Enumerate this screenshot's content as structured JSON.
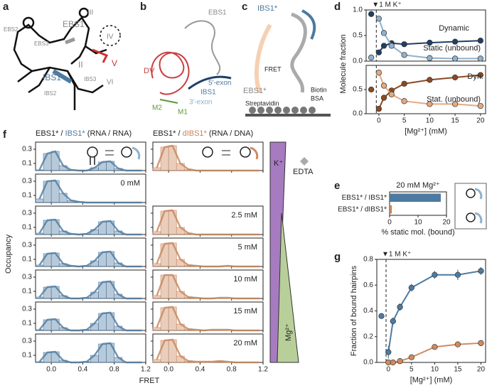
{
  "panel_labels": [
    "a",
    "b",
    "c",
    "d",
    "e",
    "f",
    "g"
  ],
  "panel_a": {
    "labels": [
      "EBS2",
      "EBS1",
      "III",
      "EBS3",
      "II",
      "IV",
      "V",
      "IBS1",
      "IBS2",
      "IBS3",
      "VI"
    ]
  },
  "panel_b": {
    "labels": [
      "EBS1",
      "DV",
      "5'-exon",
      "IBS1",
      "3'-exon",
      "M2",
      "M1"
    ]
  },
  "panel_c": {
    "labels": [
      "IBS1*",
      "FRET",
      "EBS1*",
      "Biotin",
      "BSA",
      "Streptavidin"
    ]
  },
  "panel_f_side": {
    "labels": [
      "K⁺",
      "EDTA",
      "Mg²⁺"
    ]
  },
  "chart_data": [
    {
      "type": "scatter",
      "ylabel": "Molecule fraction",
      "annotation": "▼1 M K⁺",
      "marker_x": -0.5,
      "x": [
        -1.5,
        0,
        1,
        2.5,
        5,
        10,
        15,
        20
      ],
      "xlim": [
        -2.5,
        21
      ],
      "ylim": [
        0,
        1
      ],
      "yticks": [
        {
          "value": 0,
          "label": "0.0"
        },
        {
          "value": 0.5,
          "label": "0.5"
        },
        {
          "value": 1,
          "label": "1.0"
        }
      ],
      "series": [
        {
          "name": "Dynamic",
          "color": "#1f3f66",
          "values": [
            0.92,
            0.17,
            0.3,
            0.35,
            0.33,
            0.36,
            0.38,
            0.4
          ]
        },
        {
          "name": "Static (unbound)",
          "color": "#8fb1cc",
          "values": [
            0.07,
            0.83,
            0.55,
            0.3,
            0.12,
            0.06,
            0.05,
            0.05
          ]
        }
      ]
    },
    {
      "type": "scatter",
      "xlabel": "[Mg²⁺] (mM)",
      "marker_x": -0.5,
      "x": [
        -1.5,
        0,
        1,
        2.5,
        5,
        10,
        15,
        20
      ],
      "xlim": [
        -2.5,
        21
      ],
      "ylim": [
        0,
        1
      ],
      "xticks": [
        0,
        5,
        10,
        15,
        20
      ],
      "yticks": [
        {
          "value": 0,
          "label": "0.0"
        },
        {
          "value": 0.5,
          "label": "0.5"
        }
      ],
      "series": [
        {
          "name": "Dyn.",
          "color": "#8b4a22",
          "values": [
            0.5,
            0.1,
            0.33,
            0.48,
            0.62,
            0.7,
            0.75,
            0.8
          ]
        },
        {
          "name": "Stat. (unbound)",
          "color": "#e3a982",
          "values": [
            null,
            0.85,
            0.58,
            0.4,
            0.26,
            0.2,
            0.2,
            0.16
          ]
        }
      ]
    },
    {
      "type": "hbar",
      "title": "20 mM Mg²⁺",
      "xlabel": "% static mol. (bound)",
      "categories": [
        "EBS1* / IBS1*",
        "EBS1* / dIBS1*"
      ],
      "values": [
        18,
        0.8
      ],
      "colors": [
        "#4d7aa0",
        "#c8845a"
      ],
      "xlim": [
        0,
        20
      ],
      "xticks": [
        0,
        10,
        20
      ]
    },
    {
      "type": "scatter",
      "ylabel": "Fraction of bound hairpins",
      "xlabel": "[Mg²⁺] (mM)",
      "annotation": "▼1 M K⁺",
      "marker_x": -0.5,
      "x": [
        -1.5,
        0,
        1,
        2.5,
        5,
        10,
        15,
        20
      ],
      "xlim": [
        -2.5,
        21
      ],
      "ylim": [
        0,
        0.8
      ],
      "xticks": [
        0,
        5,
        10,
        15,
        20
      ],
      "yticks": [
        {
          "value": 0,
          "label": "0.0"
        },
        {
          "value": 0.2,
          "label": "0.2"
        },
        {
          "value": 0.4,
          "label": "0.4"
        },
        {
          "value": 0.6,
          "label": "0.6"
        },
        {
          "value": 0.8,
          "label": "0.8"
        }
      ],
      "series": [
        {
          "color": "#4d7aa0",
          "values": [
            0.36,
            0.08,
            0.32,
            0.43,
            0.58,
            0.68,
            0.68,
            0.71
          ],
          "errors": [
            0.02,
            0.05,
            0.03,
            0.03,
            0.03,
            0.03,
            0.04,
            0.03
          ]
        },
        {
          "color": "#d08a5e",
          "values": [
            null,
            0.0,
            0.0,
            0.01,
            0.04,
            0.12,
            0.14,
            0.15
          ],
          "errors": [
            null,
            0.01,
            0.01,
            0.01,
            0.01,
            0.01,
            0.01,
            0.01
          ]
        }
      ]
    },
    {
      "type": "histogram",
      "ylabel": "Occupancy",
      "xlabel": "FRET",
      "headers": [
        [
          "EBS1* / ",
          "IBS1*",
          " (RNA / RNA)"
        ],
        [
          "EBS1* / ",
          "dIBS1*",
          " (RNA / DNA)"
        ]
      ],
      "colors": [
        "#4d7aa0",
        "#c8845a"
      ],
      "bins": [
        -0.2,
        -0.1,
        0,
        0.1,
        0.2,
        0.3,
        0.4,
        0.5,
        0.6,
        0.7,
        0.8,
        0.9,
        1.0,
        1.1,
        1.2
      ],
      "xlim": [
        -0.2,
        1.2
      ],
      "ylim": [
        0,
        0.4
      ],
      "yticks": [
        0.1,
        0.3
      ],
      "xticks": [
        {
          "value": 0,
          "label": "0.0"
        },
        {
          "value": 0.4,
          "label": "0.4"
        },
        {
          "value": 0.8,
          "label": "0.8"
        },
        {
          "value": 1.2,
          "label": "1.2"
        }
      ],
      "rows": [
        {
          "counts": [
            [
              0.01,
              0.24,
              0.27,
              0.07,
              0.01,
              0,
              0,
              0.04,
              0.12,
              0.13,
              0.03,
              0,
              0,
              0
            ],
            [
              0.04,
              0.33,
              0.35,
              0.1,
              0.02,
              0,
              0,
              0,
              0,
              0,
              0,
              0,
              0,
              0
            ]
          ]
        },
        {
          "label": "0 mM",
          "counts": [
            [
              0.05,
              0.3,
              0.31,
              0.13,
              0.03,
              0.01,
              0,
              0,
              0,
              0,
              0,
              0,
              0,
              0
            ],
            null
          ]
        },
        {
          "label": "2.5 mM",
          "counts": [
            [
              0.02,
              0.2,
              0.21,
              0.05,
              0.01,
              0,
              0.01,
              0.07,
              0.18,
              0.19,
              0.05,
              0,
              0,
              0
            ],
            [
              0.04,
              0.33,
              0.34,
              0.1,
              0.02,
              0,
              0,
              0,
              0,
              0,
              0,
              0,
              0,
              0
            ]
          ]
        },
        {
          "label": "5 mM",
          "counts": [
            [
              0.02,
              0.18,
              0.19,
              0.04,
              0.01,
              0,
              0.01,
              0.08,
              0.2,
              0.21,
              0.05,
              0,
              0,
              0
            ],
            [
              0.04,
              0.32,
              0.33,
              0.1,
              0.02,
              0.01,
              0,
              0,
              0,
              0.01,
              0,
              0,
              0,
              0
            ]
          ]
        },
        {
          "label": "10 mM",
          "counts": [
            [
              0.02,
              0.16,
              0.17,
              0.04,
              0,
              0,
              0.01,
              0.09,
              0.23,
              0.24,
              0.06,
              0,
              0,
              0
            ],
            [
              0.04,
              0.33,
              0.33,
              0.1,
              0.02,
              0.01,
              0,
              0,
              0.01,
              0.01,
              0,
              0,
              0,
              0
            ]
          ]
        },
        {
          "label": "15 mM",
          "counts": [
            [
              0.01,
              0.15,
              0.16,
              0.04,
              0,
              0,
              0.01,
              0.1,
              0.24,
              0.25,
              0.06,
              0,
              0,
              0
            ],
            [
              0.04,
              0.32,
              0.33,
              0.09,
              0.02,
              0.01,
              0,
              0.01,
              0.01,
              0.01,
              0,
              0,
              0,
              0
            ]
          ]
        },
        {
          "label": "20 mM",
          "counts": [
            [
              0.01,
              0.14,
              0.15,
              0.03,
              0,
              0,
              0.01,
              0.1,
              0.26,
              0.27,
              0.07,
              0,
              0,
              0
            ],
            [
              0.04,
              0.31,
              0.32,
              0.09,
              0.02,
              0.01,
              0.01,
              0.01,
              0.02,
              0.01,
              0,
              0,
              0,
              0
            ]
          ]
        }
      ]
    }
  ]
}
